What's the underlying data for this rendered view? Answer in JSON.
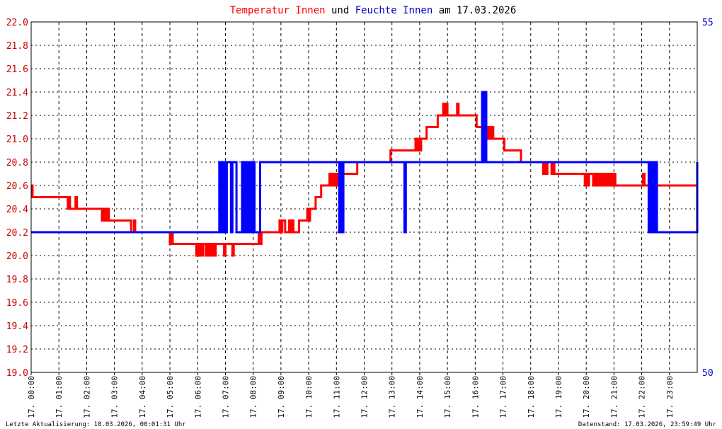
{
  "title": {
    "part1": "Temperatur Innen",
    "part2": " und ",
    "part3": "Feuchte Innen",
    "part4": " am 17.03.2026",
    "color1": "#ff0000",
    "color2": "#000000",
    "color3": "#0000cc",
    "color4": "#000000"
  },
  "footer": {
    "left": "Letzte Aktualisierung: 18.03.2026, 00:01:31 Uhr",
    "right": "Datenstand: 17.03.2026, 23:59:49 Uhr"
  },
  "colors": {
    "background": "#ffffff",
    "frame": "#000000",
    "grid": "#000000",
    "left_axis_text": "#cc0000",
    "right_axis_text": "#0000cc",
    "x_axis_text": "#000000",
    "temperature": "#ff0000",
    "humidity": "#0000ff"
  },
  "chart_data": {
    "type": "line",
    "grid": true,
    "x_unit": "hour of day 17.03.2026",
    "xlim": [
      0,
      24
    ],
    "x_ticks": [
      0,
      1,
      2,
      3,
      4,
      5,
      6,
      7,
      8,
      9,
      10,
      11,
      12,
      13,
      14,
      15,
      16,
      17,
      18,
      19,
      20,
      21,
      22,
      23
    ],
    "x_tick_labels": [
      "17. 00:00",
      "17. 01:00",
      "17. 02:00",
      "17. 03:00",
      "17. 04:00",
      "17. 05:00",
      "17. 06:00",
      "17. 07:00",
      "17. 08:00",
      "17. 09:00",
      "17. 10:00",
      "17. 11:00",
      "17. 12:00",
      "17. 13:00",
      "17. 14:00",
      "17. 15:00",
      "17. 16:00",
      "17. 17:00",
      "17. 18:00",
      "17. 19:00",
      "17. 20:00",
      "17. 21:00",
      "17. 22:00",
      "17. 23:00"
    ],
    "y_left": {
      "ylim": [
        19.0,
        22.0
      ],
      "ticks": [
        "19.0",
        "19.2",
        "19.4",
        "19.6",
        "19.8",
        "20.0",
        "20.2",
        "20.4",
        "20.6",
        "20.8",
        "21.0",
        "21.2",
        "21.4",
        "21.6",
        "21.8",
        "22.0"
      ]
    },
    "y_right": {
      "ylim": [
        50,
        55
      ],
      "ticks": [
        "50",
        "55"
      ]
    },
    "series": [
      {
        "name": "Temperatur Innen",
        "axis": "left",
        "points": [
          [
            0.0,
            20.6
          ],
          [
            0.05,
            20.5
          ],
          [
            1.3,
            20.5
          ],
          [
            1.32,
            20.4
          ],
          [
            1.35,
            20.5
          ],
          [
            1.4,
            20.4
          ],
          [
            1.6,
            20.5
          ],
          [
            1.65,
            20.4
          ],
          [
            2.5,
            20.4
          ],
          [
            2.55,
            20.3
          ],
          [
            2.62,
            20.4
          ],
          [
            2.68,
            20.3
          ],
          [
            2.75,
            20.4
          ],
          [
            2.8,
            20.3
          ],
          [
            2.9,
            20.3
          ],
          [
            3.0,
            20.3
          ],
          [
            3.5,
            20.3
          ],
          [
            3.6,
            20.2
          ],
          [
            3.7,
            20.3
          ],
          [
            3.75,
            20.2
          ],
          [
            4.95,
            20.2
          ],
          [
            5.0,
            20.1
          ],
          [
            5.05,
            20.2
          ],
          [
            5.1,
            20.1
          ],
          [
            5.9,
            20.1
          ],
          [
            5.95,
            20.0
          ],
          [
            6.0,
            20.1
          ],
          [
            6.05,
            20.0
          ],
          [
            6.1,
            20.1
          ],
          [
            6.15,
            20.0
          ],
          [
            6.2,
            20.1
          ],
          [
            6.3,
            20.0
          ],
          [
            6.35,
            20.1
          ],
          [
            6.4,
            20.0
          ],
          [
            6.45,
            20.1
          ],
          [
            6.5,
            20.0
          ],
          [
            6.55,
            20.1
          ],
          [
            6.6,
            20.0
          ],
          [
            6.65,
            20.1
          ],
          [
            6.9,
            20.1
          ],
          [
            6.95,
            20.0
          ],
          [
            7.0,
            20.1
          ],
          [
            7.2,
            20.1
          ],
          [
            7.25,
            20.0
          ],
          [
            7.3,
            20.1
          ],
          [
            8.15,
            20.1
          ],
          [
            8.2,
            20.2
          ],
          [
            8.25,
            20.1
          ],
          [
            8.3,
            20.2
          ],
          [
            8.9,
            20.2
          ],
          [
            8.95,
            20.3
          ],
          [
            9.0,
            20.2
          ],
          [
            9.05,
            20.3
          ],
          [
            9.15,
            20.2
          ],
          [
            9.25,
            20.2
          ],
          [
            9.3,
            20.3
          ],
          [
            9.35,
            20.2
          ],
          [
            9.4,
            20.3
          ],
          [
            9.45,
            20.2
          ],
          [
            9.6,
            20.2
          ],
          [
            9.65,
            20.3
          ],
          [
            9.75,
            20.3
          ],
          [
            9.9,
            20.3
          ],
          [
            9.95,
            20.4
          ],
          [
            10.0,
            20.3
          ],
          [
            10.05,
            20.4
          ],
          [
            10.2,
            20.4
          ],
          [
            10.25,
            20.5
          ],
          [
            10.4,
            20.5
          ],
          [
            10.45,
            20.6
          ],
          [
            10.7,
            20.6
          ],
          [
            10.75,
            20.7
          ],
          [
            10.8,
            20.6
          ],
          [
            10.85,
            20.7
          ],
          [
            10.9,
            20.6
          ],
          [
            10.95,
            20.7
          ],
          [
            11.0,
            20.6
          ],
          [
            11.05,
            20.7
          ],
          [
            11.4,
            20.7
          ],
          [
            11.45,
            20.7
          ],
          [
            11.7,
            20.7
          ],
          [
            11.75,
            20.8
          ],
          [
            12.0,
            20.8
          ],
          [
            12.9,
            20.8
          ],
          [
            12.95,
            20.9
          ],
          [
            13.8,
            20.9
          ],
          [
            13.85,
            21.0
          ],
          [
            13.9,
            20.9
          ],
          [
            13.95,
            21.0
          ],
          [
            14.0,
            20.9
          ],
          [
            14.05,
            21.0
          ],
          [
            14.2,
            21.0
          ],
          [
            14.25,
            21.1
          ],
          [
            14.6,
            21.1
          ],
          [
            14.65,
            21.2
          ],
          [
            14.8,
            21.2
          ],
          [
            14.85,
            21.3
          ],
          [
            14.9,
            21.2
          ],
          [
            14.95,
            21.3
          ],
          [
            15.0,
            21.2
          ],
          [
            15.3,
            21.2
          ],
          [
            15.35,
            21.3
          ],
          [
            15.4,
            21.2
          ],
          [
            16.0,
            21.2
          ],
          [
            16.05,
            21.1
          ],
          [
            16.4,
            21.1
          ],
          [
            16.45,
            21.0
          ],
          [
            16.5,
            21.1
          ],
          [
            16.55,
            21.0
          ],
          [
            16.6,
            21.1
          ],
          [
            16.65,
            21.0
          ],
          [
            17.0,
            21.0
          ],
          [
            17.05,
            20.9
          ],
          [
            17.6,
            20.9
          ],
          [
            17.65,
            20.8
          ],
          [
            18.4,
            20.8
          ],
          [
            18.45,
            20.7
          ],
          [
            18.5,
            20.8
          ],
          [
            18.55,
            20.7
          ],
          [
            18.6,
            20.8
          ],
          [
            18.7,
            20.8
          ],
          [
            18.75,
            20.7
          ],
          [
            18.8,
            20.8
          ],
          [
            18.85,
            20.7
          ],
          [
            19.9,
            20.7
          ],
          [
            19.95,
            20.6
          ],
          [
            20.0,
            20.7
          ],
          [
            20.05,
            20.6
          ],
          [
            20.1,
            20.7
          ],
          [
            20.2,
            20.7
          ],
          [
            20.25,
            20.6
          ],
          [
            20.3,
            20.7
          ],
          [
            20.35,
            20.6
          ],
          [
            20.4,
            20.7
          ],
          [
            20.45,
            20.6
          ],
          [
            20.5,
            20.7
          ],
          [
            20.55,
            20.6
          ],
          [
            20.6,
            20.7
          ],
          [
            20.65,
            20.6
          ],
          [
            20.7,
            20.7
          ],
          [
            20.75,
            20.6
          ],
          [
            20.8,
            20.7
          ],
          [
            20.85,
            20.6
          ],
          [
            20.9,
            20.7
          ],
          [
            20.95,
            20.6
          ],
          [
            21.0,
            20.7
          ],
          [
            21.05,
            20.6
          ],
          [
            22.0,
            20.6
          ],
          [
            22.05,
            20.7
          ],
          [
            22.1,
            20.6
          ],
          [
            24.0,
            20.6
          ]
        ]
      },
      {
        "name": "Feuchte Innen",
        "axis": "right",
        "points": [
          [
            0.0,
            52
          ],
          [
            6.75,
            52
          ],
          [
            6.78,
            53
          ],
          [
            6.82,
            52
          ],
          [
            6.85,
            53
          ],
          [
            6.88,
            52
          ],
          [
            6.95,
            53
          ],
          [
            7.0,
            52
          ],
          [
            7.05,
            53
          ],
          [
            7.15,
            53
          ],
          [
            7.2,
            52
          ],
          [
            7.25,
            53
          ],
          [
            7.35,
            53
          ],
          [
            7.4,
            52
          ],
          [
            7.55,
            52
          ],
          [
            7.6,
            53
          ],
          [
            7.65,
            52
          ],
          [
            7.7,
            53
          ],
          [
            7.75,
            52
          ],
          [
            7.8,
            53
          ],
          [
            7.85,
            52
          ],
          [
            7.9,
            53
          ],
          [
            7.95,
            52
          ],
          [
            8.0,
            53
          ],
          [
            8.05,
            52
          ],
          [
            8.2,
            52
          ],
          [
            8.25,
            53
          ],
          [
            11.05,
            53
          ],
          [
            11.1,
            52
          ],
          [
            11.15,
            53
          ],
          [
            11.2,
            52
          ],
          [
            11.25,
            53
          ],
          [
            13.4,
            53
          ],
          [
            13.45,
            52
          ],
          [
            13.5,
            53
          ],
          [
            16.2,
            53
          ],
          [
            16.25,
            54
          ],
          [
            16.3,
            53
          ],
          [
            16.35,
            54
          ],
          [
            16.4,
            53
          ],
          [
            22.2,
            53
          ],
          [
            22.25,
            52
          ],
          [
            22.3,
            53
          ],
          [
            22.35,
            52
          ],
          [
            22.4,
            53
          ],
          [
            22.45,
            52
          ],
          [
            22.5,
            53
          ],
          [
            22.55,
            52
          ],
          [
            23.95,
            52
          ],
          [
            24.0,
            53
          ]
        ]
      }
    ]
  }
}
